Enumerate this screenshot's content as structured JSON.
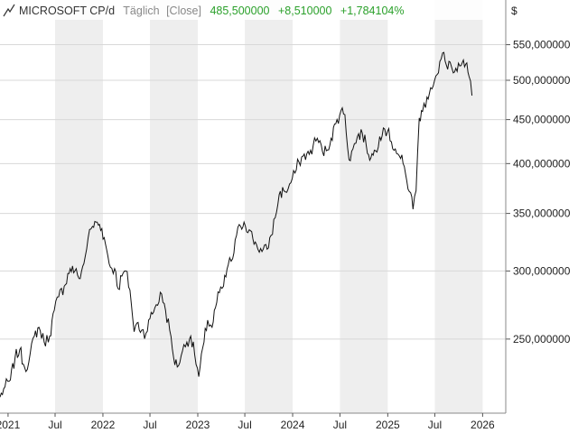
{
  "header": {
    "instrument": "MICROSOFT CP/d",
    "period": "Täglich",
    "mode": "[Close]",
    "last": "485,500000",
    "change": "+8,510000",
    "change_pct": "+1,784104%"
  },
  "currency_label": "$",
  "colors": {
    "positive": "#2aa02a",
    "muted": "#888888",
    "line": "#111111",
    "band": "#eeeeee",
    "plot_bg": "#f7f7f7",
    "grid": "#d8d8d8"
  },
  "chart_data": {
    "type": "line",
    "title": "MICROSOFT CP/d",
    "y_scale": "log",
    "ylim": [
      205,
      585
    ],
    "xlim": [
      "2020-12-01",
      "2026-03-31"
    ],
    "y_ticks": [
      {
        "value": 550,
        "label": "550,000000"
      },
      {
        "value": 500,
        "label": "500,000000"
      },
      {
        "value": 450,
        "label": "450,000000"
      },
      {
        "value": 400,
        "label": "400,000000"
      },
      {
        "value": 350,
        "label": "350,000000"
      },
      {
        "value": 300,
        "label": "300,000000"
      },
      {
        "value": 250,
        "label": "250,000000"
      }
    ],
    "x_ticks": [
      {
        "date": "2021-01-01",
        "label": "2021"
      },
      {
        "date": "2021-07-01",
        "label": "Jul"
      },
      {
        "date": "2022-01-01",
        "label": "2022"
      },
      {
        "date": "2022-07-01",
        "label": "Jul"
      },
      {
        "date": "2023-01-01",
        "label": "2023"
      },
      {
        "date": "2023-07-01",
        "label": "Jul"
      },
      {
        "date": "2024-01-01",
        "label": "2024"
      },
      {
        "date": "2024-07-01",
        "label": "Jul"
      },
      {
        "date": "2025-01-01",
        "label": "2025"
      },
      {
        "date": "2025-07-01",
        "label": "Jul"
      },
      {
        "date": "2026-01-01",
        "label": "2026"
      }
    ],
    "series": [
      {
        "x": [
          "2020-12-01",
          "2020-12-20",
          "2021-01-10",
          "2021-01-28",
          "2021-02-15",
          "2021-03-05",
          "2021-03-22",
          "2021-04-12",
          "2021-04-30",
          "2021-05-20",
          "2021-06-10",
          "2021-06-28",
          "2021-07-15",
          "2021-08-05",
          "2021-08-28",
          "2021-09-15",
          "2021-10-01",
          "2021-10-20",
          "2021-11-05",
          "2021-11-22",
          "2021-12-10",
          "2021-12-28",
          "2022-01-15",
          "2022-01-30",
          "2022-02-15",
          "2022-03-01",
          "2022-03-15",
          "2022-03-30",
          "2022-04-15",
          "2022-05-01",
          "2022-05-12",
          "2022-05-30",
          "2022-06-16",
          "2022-07-01",
          "2022-07-20",
          "2022-08-15",
          "2022-08-30",
          "2022-09-15",
          "2022-09-30",
          "2022-10-14",
          "2022-11-03",
          "2022-11-20",
          "2022-12-05",
          "2022-12-20",
          "2023-01-05",
          "2023-01-25",
          "2023-02-08",
          "2023-02-25",
          "2023-03-10",
          "2023-03-25",
          "2023-04-10",
          "2023-04-28",
          "2023-05-15",
          "2023-05-30",
          "2023-06-15",
          "2023-06-28",
          "2023-07-18",
          "2023-08-01",
          "2023-08-15",
          "2023-09-05",
          "2023-09-25",
          "2023-10-10",
          "2023-10-26",
          "2023-11-10",
          "2023-11-28",
          "2023-12-15",
          "2024-01-10",
          "2024-01-25",
          "2024-02-10",
          "2024-03-05",
          "2024-03-20",
          "2024-04-05",
          "2024-04-25",
          "2024-05-10",
          "2024-05-28",
          "2024-06-15",
          "2024-07-05",
          "2024-07-20",
          "2024-08-05",
          "2024-08-20",
          "2024-09-06",
          "2024-09-25",
          "2024-10-10",
          "2024-10-28",
          "2024-11-15",
          "2024-12-01",
          "2024-12-15",
          "2024-12-31",
          "2025-01-15",
          "2025-01-30",
          "2025-02-15",
          "2025-03-01",
          "2025-03-15",
          "2025-03-30",
          "2025-04-08",
          "2025-04-20",
          "2025-05-02",
          "2025-05-15",
          "2025-06-01",
          "2025-06-15",
          "2025-06-30",
          "2025-07-15",
          "2025-07-31",
          "2025-08-15",
          "2025-08-29",
          "2025-09-10",
          "2025-09-25",
          "2025-10-10",
          "2025-10-28",
          "2025-11-10",
          "2025-11-21"
        ],
        "y": [
          214,
          220,
          224,
          238,
          243,
          232,
          235,
          252,
          258,
          248,
          252,
          270,
          280,
          288,
          302,
          300,
          294,
          306,
          328,
          338,
          342,
          336,
          318,
          303,
          302,
          286,
          296,
          300,
          285,
          255,
          261,
          256,
          254,
          264,
          272,
          282,
          270,
          256,
          238,
          232,
          242,
          248,
          252,
          240,
          226,
          248,
          263,
          258,
          272,
          283,
          288,
          305,
          310,
          330,
          338,
          342,
          335,
          327,
          322,
          316,
          318,
          330,
          346,
          368,
          372,
          374,
          390,
          402,
          408,
          410,
          420,
          428,
          413,
          414,
          428,
          445,
          461,
          456,
          404,
          416,
          430,
          434,
          420,
          406,
          414,
          430,
          440,
          436,
          424,
          416,
          408,
          400,
          382,
          370,
          354,
          372,
          452,
          460,
          478,
          490,
          500,
          510,
          538,
          520,
          525,
          510,
          512,
          520,
          522,
          505,
          480
        ]
      }
    ]
  }
}
